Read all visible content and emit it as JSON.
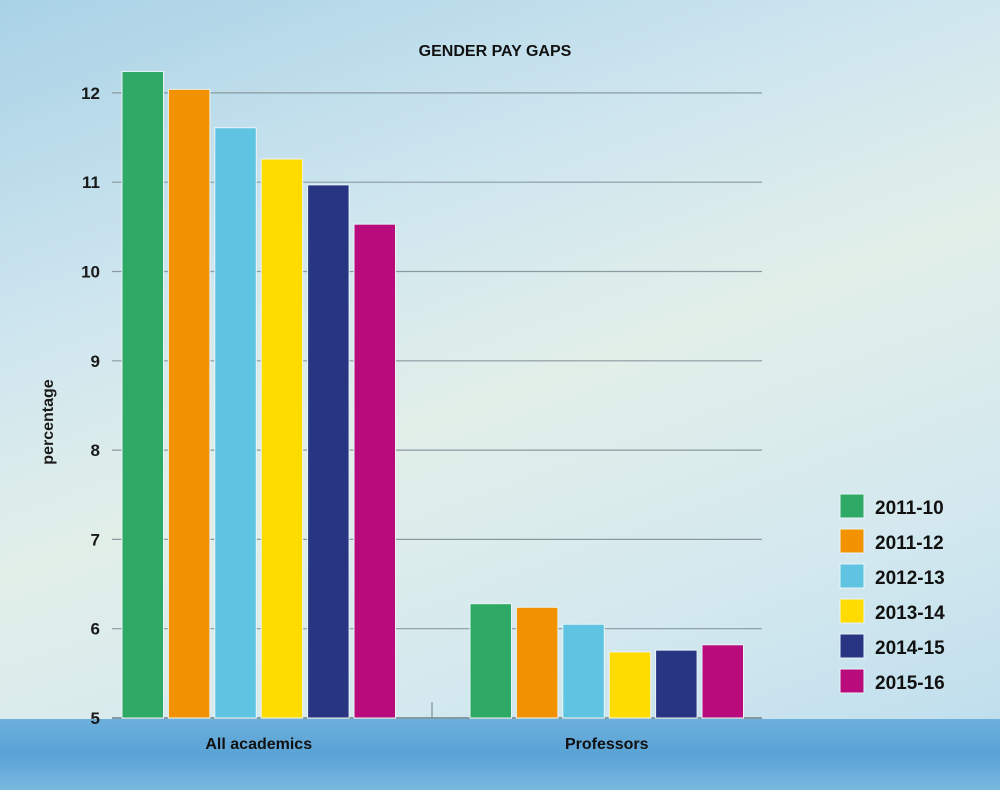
{
  "chart_data": {
    "type": "bar",
    "title": "GENDER PAY GAPS",
    "xlabel": "",
    "ylabel": "percentage",
    "ylim": [
      5,
      12.4
    ],
    "yticks": [
      5,
      6,
      7,
      8,
      9,
      10,
      11,
      12
    ],
    "grid": true,
    "legend_position": "right",
    "categories": [
      "All academics",
      "Professors"
    ],
    "series": [
      {
        "name": "2011-10",
        "color": "#2eaa66",
        "values": [
          12.24,
          6.28
        ]
      },
      {
        "name": "2011-12",
        "color": "#f39200",
        "values": [
          12.04,
          6.24
        ]
      },
      {
        "name": "2012-13",
        "color": "#5ec4e2",
        "values": [
          11.61,
          6.05
        ]
      },
      {
        "name": "2013-14",
        "color": "#ffdc00",
        "values": [
          11.26,
          5.74
        ]
      },
      {
        "name": "2014-15",
        "color": "#283582",
        "values": [
          10.97,
          5.76
        ]
      },
      {
        "name": "2015-16",
        "color": "#b90b7c",
        "values": [
          10.53,
          5.82
        ]
      }
    ]
  }
}
